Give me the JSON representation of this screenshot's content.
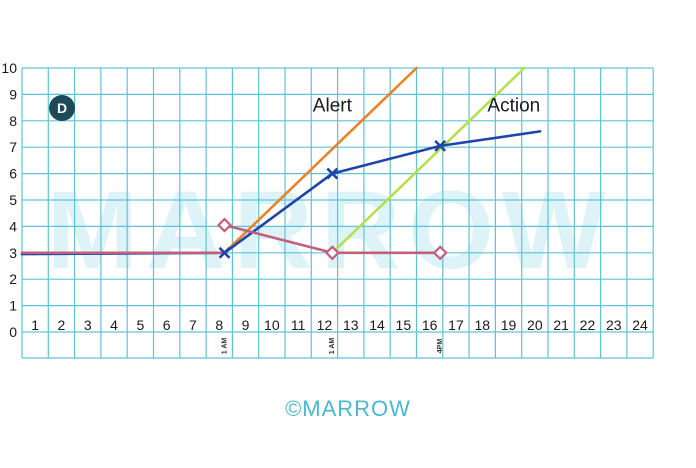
{
  "chart_data": {
    "type": "line",
    "badge": "D",
    "watermark": "MARROW",
    "copyright": "©MARROW",
    "x_ticks": [
      "1",
      "2",
      "3",
      "4",
      "5",
      "6",
      "7",
      "8",
      "9",
      "10",
      "11",
      "12",
      "13",
      "14",
      "15",
      "16",
      "17",
      "18",
      "19",
      "20",
      "21",
      "22",
      "23",
      "24"
    ],
    "y_ticks": [
      "0",
      "1",
      "2",
      "3",
      "4",
      "5",
      "6",
      "7",
      "8",
      "9",
      "10"
    ],
    "xlim": [
      0.5,
      24.5
    ],
    "ylim": [
      0,
      10
    ],
    "grid": true,
    "time_labels": [
      {
        "x": 8.2,
        "text": "1 AM",
        "color": "#333333"
      },
      {
        "x": 12.3,
        "text": "1 AM",
        "color": "#b5b5b5"
      },
      {
        "x": 16.4,
        "text": "4PM",
        "color": "#333333"
      }
    ],
    "annotations": [
      {
        "text": "Alert",
        "x": 12.3,
        "y": 8.35
      },
      {
        "text": "Action",
        "x": 19.2,
        "y": 8.35
      }
    ],
    "series": [
      {
        "key": "alert",
        "color": "#e8832a",
        "marker": "none",
        "points": [
          [
            8.2,
            3
          ],
          [
            15.5,
            10
          ]
        ]
      },
      {
        "key": "action",
        "color": "#b5e04d",
        "marker": "none",
        "points": [
          [
            12.3,
            3
          ],
          [
            19.6,
            10
          ]
        ]
      },
      {
        "key": "cervical_dilatation",
        "color": "#1f45a8",
        "marker": "x",
        "points": [
          [
            0.5,
            2.95
          ],
          [
            8.2,
            3
          ],
          [
            12.3,
            6
          ],
          [
            16.4,
            7.05
          ],
          [
            20.2,
            7.6
          ]
        ],
        "marker_points": [
          [
            8.2,
            3
          ],
          [
            12.3,
            6
          ],
          [
            16.4,
            7.05
          ]
        ]
      },
      {
        "key": "head_descent",
        "color": "#c0607a",
        "marker": "diamond",
        "points": [
          [
            0.5,
            3
          ],
          [
            8.2,
            3
          ]
        ],
        "points2": [
          [
            8.2,
            4.05
          ],
          [
            12.3,
            3
          ],
          [
            16.4,
            3
          ]
        ],
        "marker_points": [
          [
            8.2,
            4.05
          ],
          [
            12.3,
            3
          ],
          [
            16.4,
            3
          ]
        ]
      }
    ],
    "colors": {
      "grid": "#5fc3d6",
      "badge": "#1c4a57",
      "watermark": "#ddf3f8"
    }
  }
}
